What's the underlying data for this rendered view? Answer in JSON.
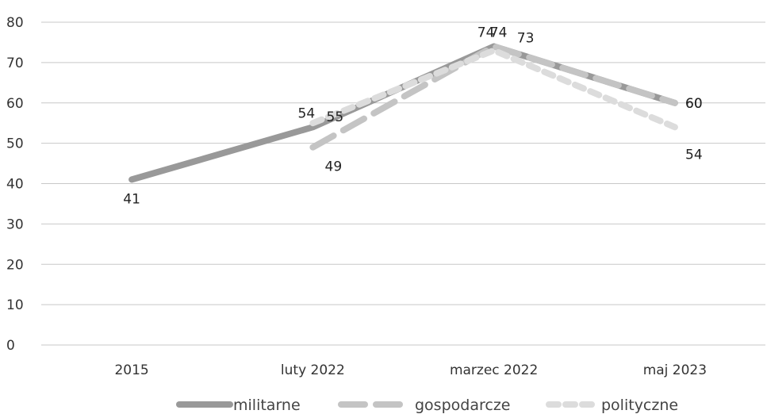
{
  "chart_data": {
    "type": "line",
    "categories": [
      "2015",
      "luty 2022",
      "marzec 2022",
      "maj 2023"
    ],
    "ylim": [
      0,
      80
    ],
    "yticks": [
      0,
      10,
      20,
      30,
      40,
      50,
      60,
      70,
      80
    ],
    "grid": true,
    "legend_position": "bottom",
    "series": [
      {
        "name": "militarne",
        "values": [
          41,
          54,
          74,
          60
        ],
        "color": "#999999",
        "style": "solid"
      },
      {
        "name": "gospodarcze",
        "values": [
          null,
          49,
          74,
          60
        ],
        "color": "#c4c4c4",
        "style": "long-dash"
      },
      {
        "name": "polityczne",
        "values": [
          null,
          55,
          73,
          54
        ],
        "color": "#dcdcdc",
        "style": "short-dash"
      }
    ]
  }
}
